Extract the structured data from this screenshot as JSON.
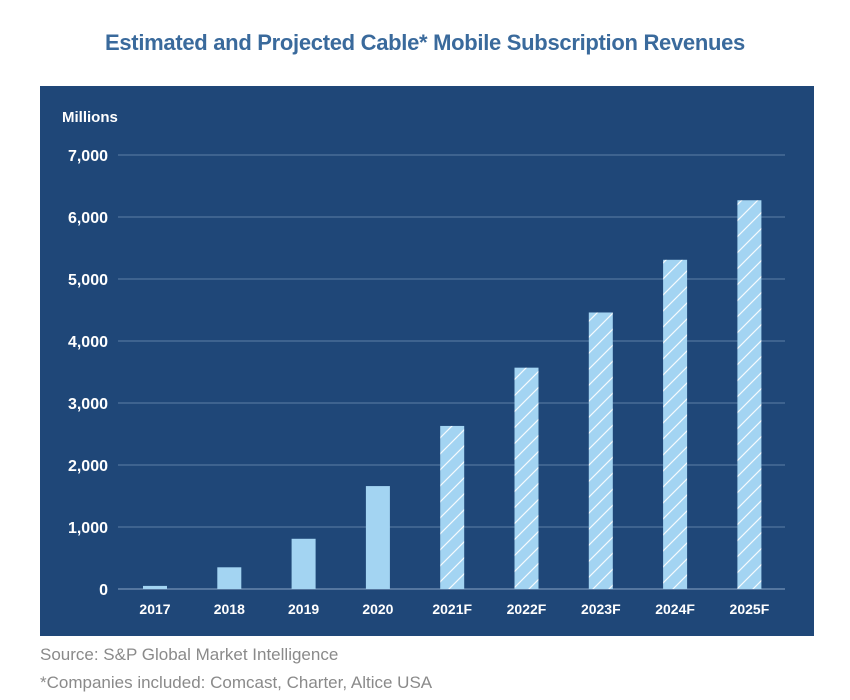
{
  "chart_data": {
    "type": "bar",
    "title": "Estimated and Projected Cable* Mobile Subscription Revenues",
    "ylabel": "Millions",
    "xlabel": "",
    "ylim": [
      0,
      7000
    ],
    "yticks": [
      0,
      1000,
      2000,
      3000,
      4000,
      5000,
      6000,
      7000
    ],
    "ytick_labels": [
      "0",
      "1,000",
      "2,000",
      "3,000",
      "4,000",
      "5,000",
      "6,000",
      "7,000"
    ],
    "categories": [
      "2017",
      "2018",
      "2019",
      "2020",
      "2021F",
      "2022F",
      "2023F",
      "2024F",
      "2025F"
    ],
    "values": [
      50,
      350,
      810,
      1660,
      2630,
      3570,
      4460,
      5310,
      6270
    ],
    "forecast": [
      false,
      false,
      false,
      false,
      true,
      true,
      true,
      true,
      true
    ],
    "grid": true,
    "colors": {
      "panel": "#1f4778",
      "bar": "#a3d4f2",
      "grid": "#5d7fa6",
      "title": "#3a6a9c"
    }
  },
  "footer": {
    "source": "Source: S&P Global Market Intelligence",
    "note": "*Companies included: Comcast, Charter, Altice USA"
  }
}
